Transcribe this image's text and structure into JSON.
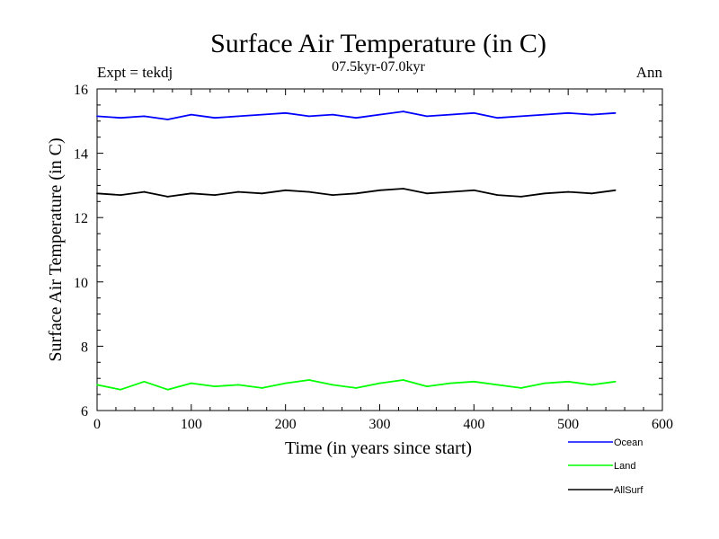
{
  "chart_data": {
    "type": "line",
    "title": "Surface Air Temperature (in C)",
    "subtitle": "07.5kyr-07.0kyr",
    "left_label": "Expt = tekdj",
    "right_label": "Ann",
    "xlabel": "Time (in years since start)",
    "ylabel": "Surface Air Temperature (in C)",
    "xlim": [
      0,
      600
    ],
    "ylim": [
      6,
      16
    ],
    "xticks": [
      "0",
      "100",
      "200",
      "300",
      "400",
      "500",
      "600"
    ],
    "yticks": [
      "6",
      "8",
      "10",
      "12",
      "14",
      "16"
    ],
    "x": [
      0,
      25,
      50,
      75,
      100,
      125,
      150,
      175,
      200,
      225,
      250,
      275,
      300,
      325,
      350,
      375,
      400,
      425,
      450,
      475,
      500,
      525,
      550
    ],
    "series": [
      {
        "name": "Ocean",
        "color": "#0000ff",
        "values": [
          15.15,
          15.1,
          15.15,
          15.05,
          15.2,
          15.1,
          15.15,
          15.2,
          15.25,
          15.15,
          15.2,
          15.1,
          15.2,
          15.3,
          15.15,
          15.2,
          15.25,
          15.1,
          15.15,
          15.2,
          15.25,
          15.2,
          15.25
        ]
      },
      {
        "name": "Land",
        "color": "#00ff00",
        "values": [
          6.8,
          6.65,
          6.9,
          6.65,
          6.85,
          6.75,
          6.8,
          6.7,
          6.85,
          6.95,
          6.8,
          6.7,
          6.85,
          6.95,
          6.75,
          6.85,
          6.9,
          6.8,
          6.7,
          6.85,
          6.9,
          6.8,
          6.9
        ]
      },
      {
        "name": "AllSurf",
        "color": "#000000",
        "values": [
          12.75,
          12.7,
          12.8,
          12.65,
          12.75,
          12.7,
          12.8,
          12.75,
          12.85,
          12.8,
          12.7,
          12.75,
          12.85,
          12.9,
          12.75,
          12.8,
          12.85,
          12.7,
          12.65,
          12.75,
          12.8,
          12.75,
          12.85
        ]
      }
    ],
    "legend_position": "bottom-right",
    "grid": false
  }
}
